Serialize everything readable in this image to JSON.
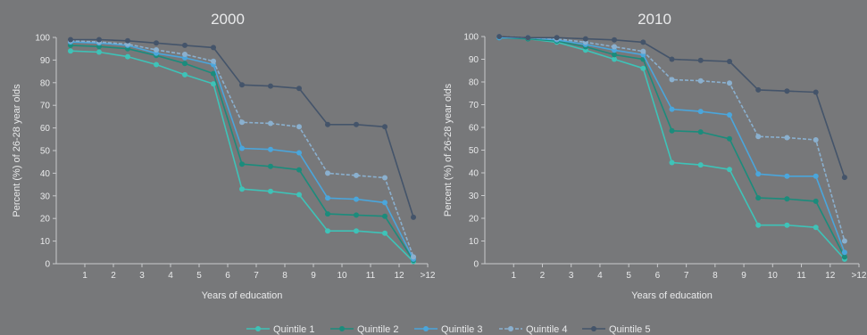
{
  "colors": {
    "background": "#77787a",
    "axis": "#c9cacc",
    "text": "#e9eaeb",
    "quintile_1": "#3ec3b8",
    "quintile_2": "#1b8c7c",
    "quintile_3": "#4aa6dc",
    "quintile_4": "#8ab0cf",
    "quintile_5": "#44546a"
  },
  "legend": {
    "placement": "bottom-center",
    "items": [
      "Quintile 1",
      "Quintile 2",
      "Quintile 3",
      "Quintile 4",
      "Quintile 5"
    ]
  },
  "chart_data": [
    {
      "type": "line",
      "title": "2000",
      "xlabel": "Years of education",
      "ylabel": "Percent (%) of 26-28 year olds",
      "ylim": [
        0,
        100
      ],
      "yticks": [
        "0",
        "10",
        "20",
        "30",
        "40",
        "50",
        "60",
        "70",
        "80",
        "90",
        "100"
      ],
      "xticks": [
        "1",
        "2",
        "3",
        "4",
        "5",
        "6",
        "7",
        "8",
        "9",
        "10",
        "11",
        "12",
        ">12"
      ],
      "grid": false,
      "categories": [
        "0",
        "1",
        "2",
        "3",
        "4",
        "5",
        "6",
        "7",
        "8",
        "9",
        "10",
        "11",
        "12"
      ],
      "series": [
        {
          "name": "Quintile 1",
          "values": [
            94,
            93.5,
            91.5,
            88,
            83.5,
            79.5,
            33,
            32,
            30.5,
            14.5,
            14.5,
            13.5,
            1
          ]
        },
        {
          "name": "Quintile 2",
          "values": [
            96.5,
            96,
            95,
            92,
            88.5,
            84,
            44,
            43,
            41.5,
            22,
            21.5,
            21,
            1.5
          ]
        },
        {
          "name": "Quintile 3",
          "values": [
            98,
            97.5,
            96.5,
            93,
            91,
            88,
            51,
            50.5,
            49,
            29,
            28.5,
            27,
            2
          ]
        },
        {
          "name": "Quintile 4",
          "values": [
            98.5,
            98,
            97,
            94.5,
            92.5,
            89.5,
            62.5,
            62,
            60.5,
            40,
            39,
            38,
            3
          ]
        },
        {
          "name": "Quintile 5",
          "values": [
            99,
            99,
            98.5,
            97.5,
            96.5,
            95.5,
            79,
            78.5,
            77.5,
            61.5,
            61.5,
            60.5,
            20.5
          ]
        }
      ]
    },
    {
      "type": "line",
      "title": "2010",
      "xlabel": "Years of education",
      "ylabel": "Percent (%) of 26-28 year olds",
      "ylim": [
        0,
        100
      ],
      "yticks": [
        "0",
        "10",
        "20",
        "30",
        "40",
        "50",
        "60",
        "70",
        "80",
        "90",
        "100"
      ],
      "xticks": [
        "1",
        "2",
        "3",
        "4",
        "5",
        "6",
        "7",
        "8",
        "9",
        "10",
        "11",
        "12",
        ">12"
      ],
      "grid": false,
      "categories": [
        "0",
        "1",
        "2",
        "3",
        "4",
        "5",
        "6",
        "7",
        "8",
        "9",
        "10",
        "11",
        "12"
      ],
      "series": [
        {
          "name": "Quintile 1",
          "values": [
            99.5,
            99,
            97.5,
            94,
            90,
            86,
            44.5,
            43.5,
            41.5,
            17,
            17,
            16,
            2
          ]
        },
        {
          "name": "Quintile 2",
          "values": [
            99.5,
            99,
            98,
            95.5,
            92,
            90,
            58.5,
            58,
            55,
            29,
            28.5,
            27.5,
            3
          ]
        },
        {
          "name": "Quintile 3",
          "values": [
            99.5,
            99.5,
            98.5,
            96.5,
            94,
            92,
            68,
            67,
            65.5,
            39.5,
            38.5,
            38.5,
            5
          ]
        },
        {
          "name": "Quintile 4",
          "values": [
            100,
            99.5,
            99,
            97.5,
            95.5,
            93.5,
            81,
            80.5,
            79.5,
            56,
            55.5,
            54.5,
            10
          ]
        },
        {
          "name": "Quintile 5",
          "values": [
            100,
            99.5,
            99.5,
            99,
            98.5,
            97.5,
            90,
            89.5,
            89,
            76.5,
            76,
            75.5,
            38
          ]
        }
      ]
    }
  ]
}
